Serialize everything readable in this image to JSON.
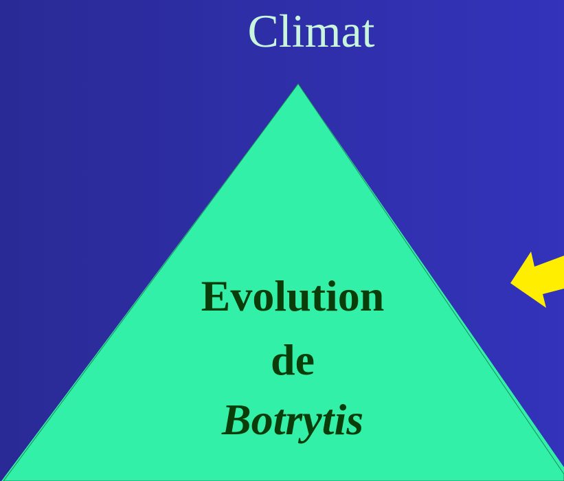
{
  "title": "Climat",
  "triangle": {
    "line1": "Evolution",
    "line2": "de",
    "line3": "Botrytis"
  }
}
